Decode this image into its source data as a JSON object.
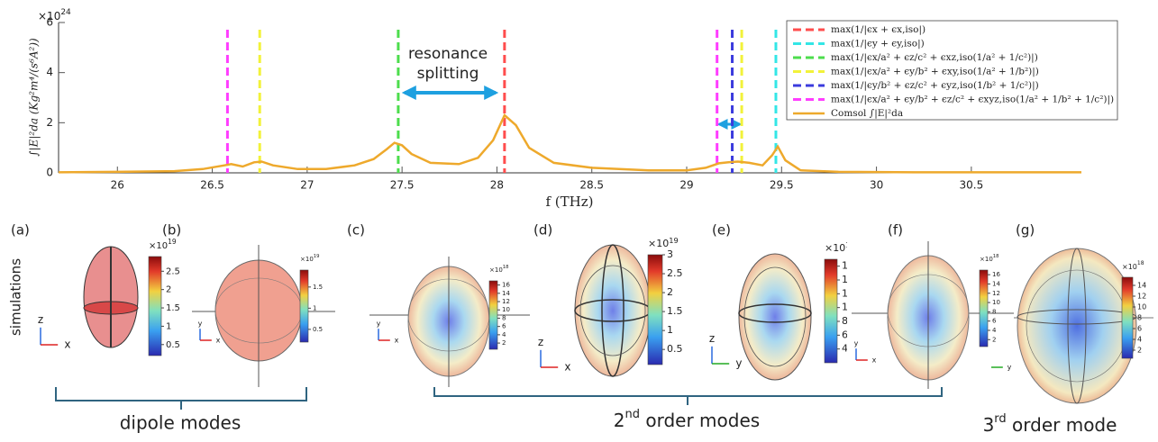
{
  "chart_data": {
    "type": "line",
    "y_exponent": {
      "base": "×10",
      "exp": "24"
    },
    "ylabel": "∫|E|²da (Kg²m⁴/(s⁶A²))",
    "xlabel": "f (THz)",
    "xlim": [
      25.69,
      31.08
    ],
    "xticks": [
      26,
      26.5,
      27,
      27.5,
      28,
      28.5,
      29,
      29.5,
      30,
      30.5
    ],
    "ylim": [
      0,
      6
    ],
    "yticks": [
      0,
      2,
      4,
      6
    ],
    "legend": "upper right",
    "vlines": [
      {
        "name": "max(1/|ϵx + ϵx,iso|)",
        "color": "#ff4d4d",
        "x": [
          28.04
        ]
      },
      {
        "name": "max(1/|ϵy + ϵy,iso|)",
        "color": "#33e6e6",
        "x": [
          29.47
        ]
      },
      {
        "name": "max(1/|ϵx/a² + ϵz/c² + ϵxz,iso(1/a² + 1/c²)|)",
        "color": "#4ddd4d",
        "x": [
          27.48
        ]
      },
      {
        "name": "max(1/|ϵx/a² + ϵy/b² + ϵxy,iso(1/a² + 1/b²)|)",
        "color": "#f2f23a",
        "x": [
          26.75,
          29.29
        ]
      },
      {
        "name": "max(1/|ϵy/b² + ϵz/c² + ϵyz,iso(1/b² + 1/c²)|)",
        "color": "#3b3bdd",
        "x": [
          29.24
        ]
      },
      {
        "name": "max(1/|ϵx/a² + ϵy/b² + ϵz/c² + ϵxyz,iso(1/a² + 1/b² + 1/c²)|)",
        "color": "#ff3dff",
        "x": [
          26.58,
          29.16
        ]
      }
    ],
    "series": [
      {
        "name": "Comsol ∫|E|²da",
        "color": "#eea92c",
        "x": [
          25.69,
          26.0,
          26.3,
          26.45,
          26.55,
          26.6,
          26.66,
          26.72,
          26.76,
          26.82,
          26.95,
          27.1,
          27.25,
          27.35,
          27.42,
          27.46,
          27.5,
          27.55,
          27.65,
          27.8,
          27.9,
          27.98,
          28.04,
          28.1,
          28.17,
          28.3,
          28.5,
          28.8,
          29.0,
          29.1,
          29.17,
          29.22,
          29.27,
          29.33,
          29.4,
          29.45,
          29.48,
          29.52,
          29.6,
          29.8,
          30.2,
          31.08
        ],
        "values": [
          0.02,
          0.04,
          0.07,
          0.15,
          0.28,
          0.35,
          0.25,
          0.42,
          0.45,
          0.3,
          0.15,
          0.15,
          0.3,
          0.55,
          0.95,
          1.2,
          1.1,
          0.75,
          0.4,
          0.35,
          0.6,
          1.3,
          2.3,
          1.9,
          1.0,
          0.4,
          0.2,
          0.1,
          0.1,
          0.2,
          0.38,
          0.42,
          0.45,
          0.4,
          0.3,
          0.7,
          1.05,
          0.5,
          0.1,
          0.04,
          0.02,
          0.02
        ]
      }
    ],
    "annotation": [
      "resonance",
      "splitting"
    ]
  },
  "figure": {
    "side_label": "simulations",
    "panels": [
      {
        "label": "(a)",
        "axes": [
          "z",
          "x"
        ],
        "colorbar": {
          "exponent": {
            "base": "×10",
            "exp": "19"
          },
          "clim": [
            0.2,
            2.9
          ],
          "ticks": [
            0.5,
            1,
            1.5,
            2,
            2.5
          ]
        }
      },
      {
        "label": "(b)",
        "axes": [
          "y",
          "x"
        ],
        "colorbar": {
          "exponent": {
            "base": "×10",
            "exp": "19"
          },
          "clim": [
            0.2,
            1.9
          ],
          "ticks": [
            0.5,
            1,
            1.5
          ]
        }
      },
      {
        "label": "(c)",
        "axes": [
          "y",
          "x"
        ],
        "colorbar": {
          "exponent": {
            "base": "×10",
            "exp": "18"
          },
          "clim": [
            0.5,
            17
          ],
          "ticks": [
            2,
            4,
            6,
            8,
            10,
            12,
            14,
            16
          ]
        }
      },
      {
        "label": "(d)",
        "axes": [
          "z",
          "x"
        ],
        "colorbar": {
          "exponent": {
            "base": "×10",
            "exp": "19"
          },
          "clim": [
            0.1,
            3.0
          ],
          "ticks": [
            0.5,
            1,
            1.5,
            2,
            2.5,
            3
          ]
        }
      },
      {
        "label": "(e)",
        "axes": [
          "z",
          "y"
        ],
        "colorbar": {
          "exponent": {
            "base": "×10",
            "exp": "18"
          },
          "clim": [
            2,
            17
          ],
          "ticks": [
            4,
            6,
            8,
            10,
            12,
            14,
            16
          ]
        }
      },
      {
        "label": "(f)",
        "axes": [
          "y",
          "x"
        ],
        "colorbar": {
          "exponent": {
            "base": "×10",
            "exp": "18"
          },
          "clim": [
            0.5,
            17
          ],
          "ticks": [
            2,
            4,
            6,
            8,
            10,
            12,
            14,
            16
          ]
        }
      },
      {
        "label": "(g)",
        "axes": [
          "y"
        ],
        "colorbar": {
          "exponent": {
            "base": "×10",
            "exp": "18"
          },
          "clim": [
            0.5,
            15.5
          ],
          "ticks": [
            2,
            4,
            6,
            8,
            10,
            12,
            14
          ]
        }
      }
    ],
    "groups": [
      {
        "text": "dipole modes"
      },
      {
        "text": "2",
        "sup": "nd",
        "rest": " order modes"
      },
      {
        "text": "3",
        "sup": "rd",
        "rest": " order mode"
      }
    ]
  }
}
